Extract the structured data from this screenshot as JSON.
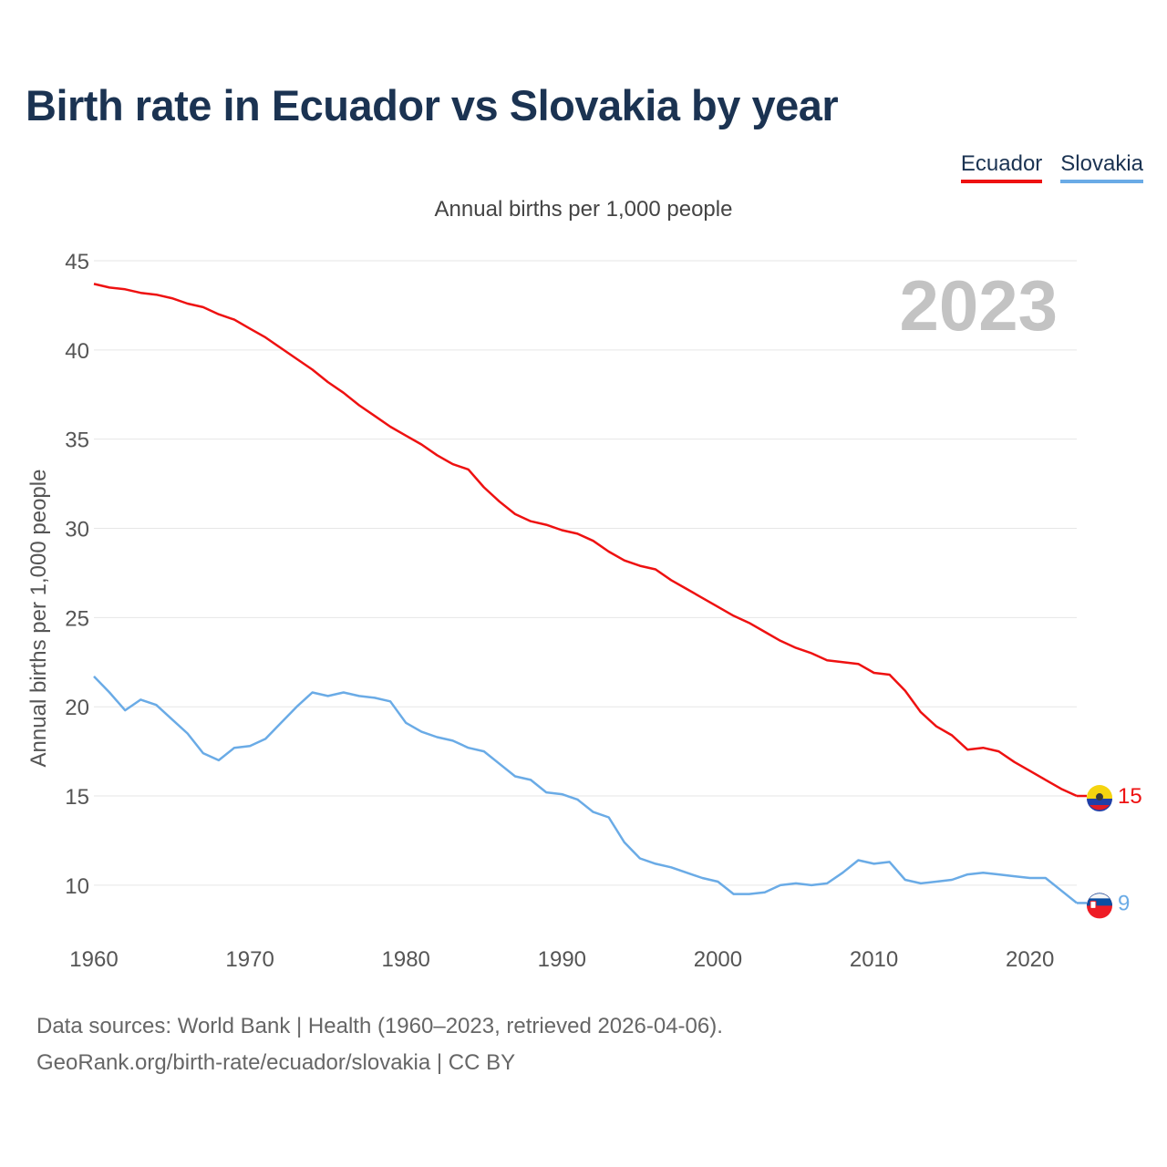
{
  "page": {
    "title": "Birth rate in Ecuador vs Slovakia by year",
    "subtitle": "Annual births per 1,000 people",
    "footer": {
      "line1": "Data sources: World Bank | Health (1960–2023, retrieved 2026-04-06).",
      "line2": "GeoRank.org/birth-rate/ecuador/slovakia | CC BY"
    }
  },
  "chart_data": {
    "type": "line",
    "title": "Birth rate in Ecuador vs Slovakia by year",
    "subtitle": "Annual births per 1,000 people",
    "xlabel": "",
    "ylabel": "Annual births per 1,000 people",
    "xlim": [
      1960,
      2023
    ],
    "ylim": [
      8,
      45
    ],
    "x_ticks": [
      1960,
      1970,
      1980,
      1990,
      2000,
      2010,
      2020
    ],
    "y_ticks": [
      10,
      15,
      20,
      25,
      30,
      35,
      40,
      45
    ],
    "grid": true,
    "legend_position": "top-right",
    "year_label": "2023",
    "x": [
      1960,
      1961,
      1962,
      1963,
      1964,
      1965,
      1966,
      1967,
      1968,
      1969,
      1970,
      1971,
      1972,
      1973,
      1974,
      1975,
      1976,
      1977,
      1978,
      1979,
      1980,
      1981,
      1982,
      1983,
      1984,
      1985,
      1986,
      1987,
      1988,
      1989,
      1990,
      1991,
      1992,
      1993,
      1994,
      1995,
      1996,
      1997,
      1998,
      1999,
      2000,
      2001,
      2002,
      2003,
      2004,
      2005,
      2006,
      2007,
      2008,
      2009,
      2010,
      2011,
      2012,
      2013,
      2014,
      2015,
      2016,
      2017,
      2018,
      2019,
      2020,
      2021,
      2022,
      2023
    ],
    "series": [
      {
        "name": "Ecuador",
        "color": "#ee1111",
        "end_label": "15",
        "values": [
          43.7,
          43.5,
          43.4,
          43.2,
          43.1,
          42.9,
          42.6,
          42.4,
          42.0,
          41.7,
          41.2,
          40.7,
          40.1,
          39.5,
          38.9,
          38.2,
          37.6,
          36.9,
          36.3,
          35.7,
          35.2,
          34.7,
          34.1,
          33.6,
          33.3,
          32.3,
          31.5,
          30.8,
          30.4,
          30.2,
          29.9,
          29.7,
          29.3,
          28.7,
          28.2,
          27.9,
          27.7,
          27.1,
          26.6,
          26.1,
          25.6,
          25.1,
          24.7,
          24.2,
          23.7,
          23.3,
          23.0,
          22.6,
          22.5,
          22.4,
          21.9,
          21.8,
          20.9,
          19.7,
          18.9,
          18.4,
          17.6,
          17.7,
          17.5,
          16.9,
          16.4,
          15.9,
          15.4,
          15.0
        ]
      },
      {
        "name": "Slovakia",
        "color": "#6aabe6",
        "end_label": "9",
        "values": [
          21.7,
          20.8,
          19.8,
          20.4,
          20.1,
          19.3,
          18.5,
          17.4,
          17.0,
          17.7,
          17.8,
          18.2,
          19.1,
          20.0,
          20.8,
          20.6,
          20.8,
          20.6,
          20.5,
          20.3,
          19.1,
          18.6,
          18.3,
          18.1,
          17.7,
          17.5,
          16.8,
          16.1,
          15.9,
          15.2,
          15.1,
          14.8,
          14.1,
          13.8,
          12.4,
          11.5,
          11.2,
          11.0,
          10.7,
          10.4,
          10.2,
          9.5,
          9.5,
          9.6,
          10.0,
          10.1,
          10.0,
          10.1,
          10.7,
          11.4,
          11.2,
          11.3,
          10.3,
          10.1,
          10.2,
          10.3,
          10.6,
          10.7,
          10.6,
          10.5,
          10.4,
          10.4,
          9.7,
          9.0
        ]
      }
    ]
  }
}
